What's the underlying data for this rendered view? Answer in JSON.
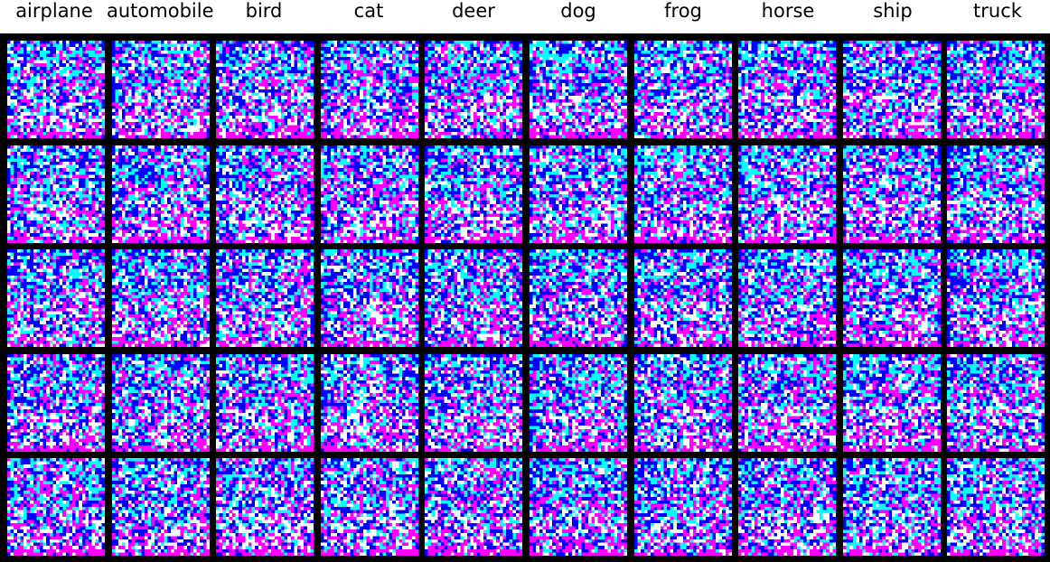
{
  "figure": {
    "class_labels": [
      "airplane",
      "automobile",
      "bird",
      "cat",
      "deer",
      "dog",
      "frog",
      "horse",
      "ship",
      "truck"
    ],
    "rows": 5,
    "palette": {
      "background": "#000000",
      "cyan": "#00ffff",
      "blue": "#0000ff",
      "magenta": "#ff00ff",
      "white": "#ffffff"
    }
  }
}
